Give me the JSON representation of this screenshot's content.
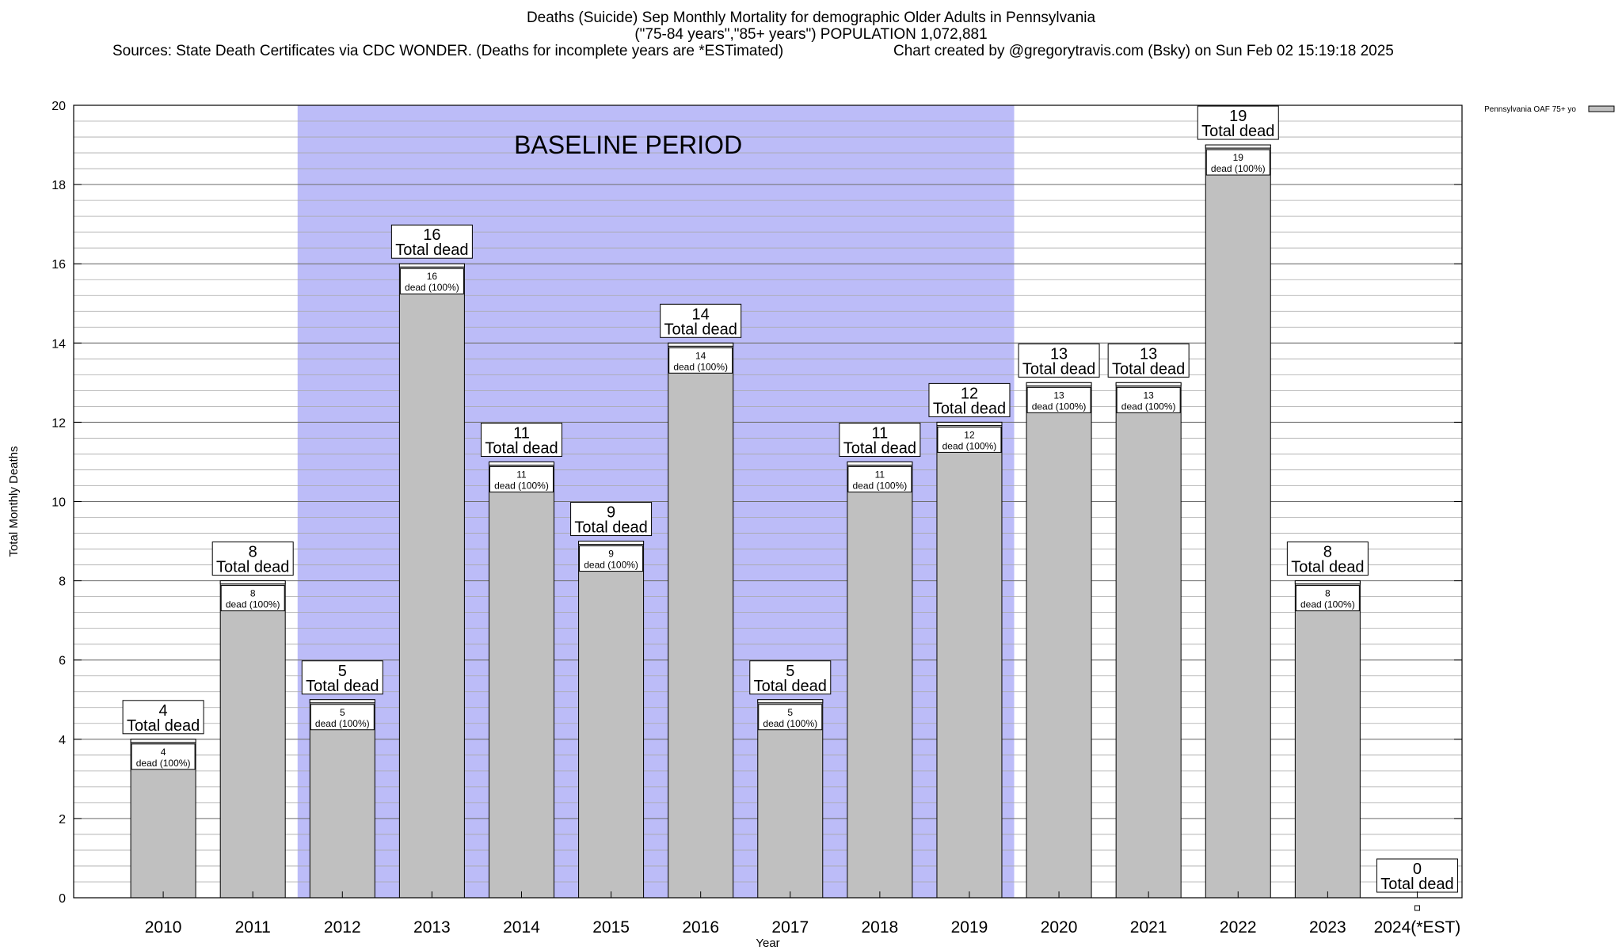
{
  "header": {
    "title": "Deaths (Suicide) Sep Monthly Mortality for demographic Older Adults in Pennsylvania",
    "subtitle": "(\"75-84 years\",\"85+ years\") POPULATION 1,072,881",
    "sources": "Sources: State Death Certificates via CDC WONDER. (Deaths for incomplete years are *ESTimated)",
    "credit": "Chart created by @gregorytravis.com (Bsky) on Sun Feb 02 15:19:18 2025"
  },
  "chart_data": {
    "type": "bar",
    "xlabel": "Year",
    "ylabel": "Total Monthly Deaths",
    "ylim": [
      0,
      20
    ],
    "y_ticks": [
      0,
      2,
      4,
      6,
      8,
      10,
      12,
      14,
      16,
      18,
      20
    ],
    "grid": true,
    "legend_position": "top-right",
    "categories": [
      "2010",
      "2011",
      "2012",
      "2013",
      "2014",
      "2015",
      "2016",
      "2017",
      "2018",
      "2019",
      "2020",
      "2021",
      "2022",
      "2023",
      "2024(*EST)"
    ],
    "series": [
      {
        "name": "Pennsylvania OAF 75+ yo",
        "color": "#c0c0c0",
        "values": [
          4,
          8,
          5,
          16,
          11,
          9,
          14,
          5,
          11,
          12,
          13,
          13,
          19,
          8,
          0
        ]
      }
    ],
    "annotation_total_label": "Total dead",
    "annotation_inner_label": "dead (100%)",
    "baseline": {
      "label": "BASELINE PERIOD",
      "from": "2012",
      "to": "2019",
      "color": "#bcbcf8"
    }
  }
}
